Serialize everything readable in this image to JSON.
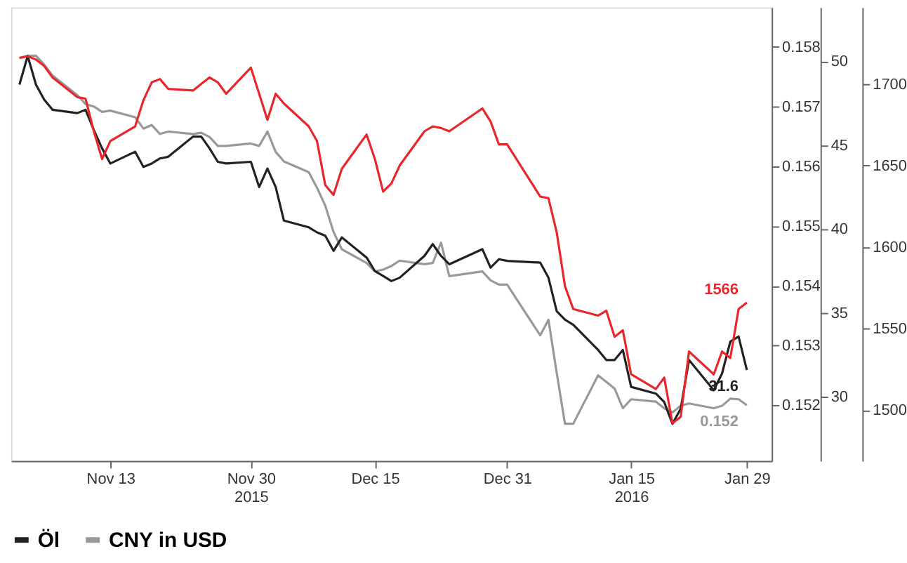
{
  "chart_data": {
    "type": "line",
    "x": [
      "2015-11-02",
      "2015-11-03",
      "2015-11-04",
      "2015-11-05",
      "2015-11-06",
      "2015-11-09",
      "2015-11-10",
      "2015-11-11",
      "2015-11-12",
      "2015-11-13",
      "2015-11-16",
      "2015-11-17",
      "2015-11-18",
      "2015-11-19",
      "2015-11-20",
      "2015-11-23",
      "2015-11-24",
      "2015-11-25",
      "2015-11-26",
      "2015-11-27",
      "2015-11-30",
      "2015-12-01",
      "2015-12-02",
      "2015-12-03",
      "2015-12-04",
      "2015-12-07",
      "2015-12-08",
      "2015-12-09",
      "2015-12-10",
      "2015-12-11",
      "2015-12-14",
      "2015-12-15",
      "2015-12-16",
      "2015-12-17",
      "2015-12-18",
      "2015-12-21",
      "2015-12-22",
      "2015-12-23",
      "2015-12-24",
      "2015-12-28",
      "2015-12-29",
      "2015-12-30",
      "2015-12-31",
      "2016-01-04",
      "2016-01-05",
      "2016-01-06",
      "2016-01-07",
      "2016-01-08",
      "2016-01-11",
      "2016-01-12",
      "2016-01-13",
      "2016-01-14",
      "2016-01-15",
      "2016-01-18",
      "2016-01-19",
      "2016-01-20",
      "2016-01-21",
      "2016-01-22",
      "2016-01-25",
      "2016-01-26",
      "2016-01-27",
      "2016-01-28",
      "2016-01-29"
    ],
    "series": [
      {
        "color": "#e8262b",
        "axis": "y3",
        "value_labels": [
          null,
          null,
          null,
          null,
          null,
          null,
          null,
          null,
          null,
          null,
          null,
          null,
          null,
          null,
          null,
          null,
          null,
          null,
          null,
          null,
          null,
          null,
          null,
          null,
          null,
          null,
          null,
          null,
          null,
          null,
          null,
          null,
          null,
          null,
          null,
          null,
          null,
          null,
          null,
          null,
          null,
          null,
          null,
          null,
          null,
          null,
          null,
          null,
          null,
          null,
          null,
          null,
          null,
          null,
          null,
          null,
          null,
          null,
          null,
          null,
          null,
          null,
          "1566"
        ],
        "values": [
          1716,
          1717,
          1715,
          1711,
          1704,
          1692,
          1691,
          1671,
          1654,
          1665,
          1674,
          1690,
          1701,
          1703,
          1697,
          1696,
          1700,
          1704,
          1701,
          1694,
          1710,
          1694,
          1678,
          1694,
          1688,
          1674,
          1665,
          1638,
          1632,
          1648,
          1669,
          1654,
          1634,
          1639,
          1650,
          1671,
          1674,
          1673,
          1671,
          1685,
          1677,
          1663,
          1663,
          1631,
          1630,
          1609,
          1576,
          1562,
          1558,
          1561,
          1545,
          1549,
          1522,
          1513,
          1520,
          1492,
          1496,
          1536,
          1522,
          1536,
          1532,
          1562,
          1566
        ]
      },
      {
        "name": "Öl",
        "color": "#222222",
        "axis": "y2",
        "value_labels": [
          null,
          null,
          null,
          null,
          null,
          null,
          null,
          null,
          null,
          null,
          null,
          null,
          null,
          null,
          null,
          null,
          null,
          null,
          null,
          null,
          null,
          null,
          null,
          null,
          null,
          null,
          null,
          null,
          null,
          null,
          null,
          null,
          null,
          null,
          null,
          null,
          null,
          null,
          null,
          null,
          null,
          null,
          null,
          null,
          null,
          null,
          null,
          null,
          null,
          null,
          null,
          null,
          null,
          null,
          null,
          null,
          null,
          null,
          null,
          null,
          null,
          null,
          "31.6"
        ],
        "values": [
          48.6,
          50.3,
          48.6,
          47.7,
          47.1,
          46.9,
          47.1,
          45.9,
          44.8,
          43.9,
          44.6,
          43.7,
          43.9,
          44.2,
          44.3,
          45.5,
          45.5,
          44.8,
          44.0,
          43.9,
          44.0,
          42.5,
          43.6,
          42.5,
          40.5,
          40.1,
          39.8,
          39.6,
          38.7,
          39.5,
          38.3,
          37.5,
          37.2,
          36.9,
          37.1,
          38.4,
          39.1,
          38.4,
          37.9,
          38.8,
          37.7,
          38.2,
          38.1,
          38.0,
          37.1,
          35.1,
          34.6,
          34.3,
          32.8,
          32.2,
          32.2,
          32.8,
          30.6,
          30.2,
          29.7,
          28.4,
          29.3,
          32.2,
          30.4,
          31.4,
          33.3,
          33.6,
          31.6
        ]
      },
      {
        "name": "CNY in USD",
        "color": "#999999",
        "axis": "y",
        "value_labels": [
          null,
          null,
          null,
          null,
          null,
          null,
          null,
          null,
          null,
          null,
          null,
          null,
          null,
          null,
          null,
          null,
          null,
          null,
          null,
          null,
          null,
          null,
          null,
          null,
          null,
          null,
          null,
          null,
          null,
          null,
          null,
          null,
          null,
          null,
          null,
          null,
          null,
          null,
          null,
          null,
          null,
          null,
          null,
          null,
          null,
          null,
          null,
          null,
          null,
          null,
          null,
          null,
          null,
          null,
          null,
          null,
          null,
          null,
          null,
          null,
          null,
          null,
          "0.152"
        ],
        "values": [
          0.15781,
          0.15785,
          0.15785,
          0.1577,
          0.15752,
          0.15719,
          0.15704,
          0.157,
          0.15691,
          0.15693,
          0.15682,
          0.15663,
          0.15669,
          0.15654,
          0.15658,
          0.15654,
          0.15656,
          0.15649,
          0.15634,
          0.15634,
          0.15638,
          0.15634,
          0.15658,
          0.15624,
          0.15608,
          0.1559,
          0.15564,
          0.15534,
          0.1549,
          0.15461,
          0.15438,
          0.15424,
          0.15427,
          0.15433,
          0.15442,
          0.15436,
          0.15438,
          0.15472,
          0.15416,
          0.15424,
          0.15409,
          0.15402,
          0.15402,
          0.15317,
          0.15343,
          0.15254,
          0.15169,
          0.15169,
          0.1525,
          0.15239,
          0.15228,
          0.15195,
          0.1521,
          0.15206,
          0.15195,
          0.15188,
          0.15199,
          0.15203,
          0.15195,
          0.15199,
          0.15211,
          0.1521,
          0.152
        ]
      }
    ],
    "xlim": [
      "2015-11-01",
      "2016-02-01"
    ],
    "xticks": [
      {
        "value": "2015-11-13",
        "label": "Nov 13"
      },
      {
        "value": "2015-11-30",
        "label": "Nov 30\n2015"
      },
      {
        "value": "2015-12-15",
        "label": "Dec 15"
      },
      {
        "value": "2015-12-31",
        "label": "Dec 31"
      },
      {
        "value": "2016-01-15",
        "label": "Jan 15\n2016"
      },
      {
        "value": "2016-01-29",
        "label": "Jan 29"
      }
    ],
    "ylim": [
      0.15107,
      0.15866
    ],
    "yticks": [
      0.152,
      0.153,
      0.154,
      0.155,
      0.156,
      0.157,
      0.158
    ],
    "y2lim": [
      26.2,
      53.2
    ],
    "y2ticks": [
      30,
      35,
      40,
      45,
      50
    ],
    "y3lim": [
      1469,
      1747
    ],
    "y3ticks": [
      1500,
      1550,
      1600,
      1650,
      1700
    ],
    "legend": "bottom",
    "grid": false,
    "line_style": "solid",
    "marker": "none"
  }
}
